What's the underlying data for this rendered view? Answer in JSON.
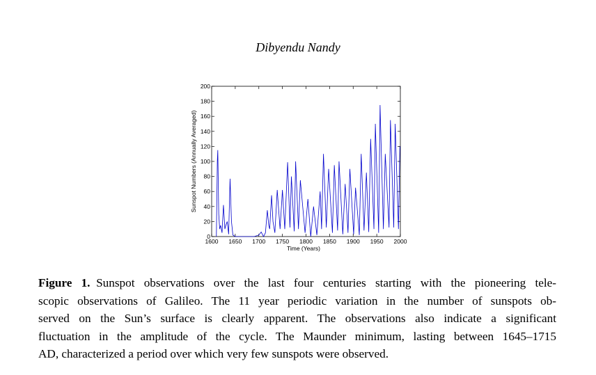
{
  "header": {
    "author": "Dibyendu Nandy"
  },
  "chart_data": {
    "type": "line",
    "xlabel": "Time (Years)",
    "ylabel": "Sunspot Numbers (Annually Averaged)",
    "xlim": [
      1600,
      2000
    ],
    "ylim": [
      0,
      200
    ],
    "xticks": [
      1600,
      1650,
      1700,
      1750,
      1800,
      1850,
      1900,
      1950,
      2000
    ],
    "yticks": [
      0,
      20,
      40,
      60,
      80,
      100,
      120,
      140,
      160,
      180,
      200
    ],
    "series": [
      {
        "color": "#0000cc",
        "x": [
          1610,
          1612,
          1613,
          1615,
          1617,
          1619,
          1622,
          1625,
          1628,
          1630,
          1633,
          1636,
          1639,
          1642,
          1645,
          1650,
          1660,
          1670,
          1680,
          1690,
          1700,
          1705,
          1710,
          1714,
          1718,
          1721,
          1723,
          1727,
          1730,
          1734,
          1739,
          1745,
          1750,
          1755,
          1761,
          1766,
          1769,
          1775,
          1778,
          1784,
          1788,
          1798,
          1804,
          1810,
          1816,
          1823,
          1830,
          1833,
          1837,
          1843,
          1848,
          1856,
          1860,
          1867,
          1870,
          1878,
          1883,
          1889,
          1893,
          1901,
          1905,
          1913,
          1917,
          1923,
          1928,
          1933,
          1937,
          1944,
          1947,
          1954,
          1957,
          1964,
          1968,
          1976,
          1979,
          1986,
          1989,
          1996,
          1999
        ],
        "values": [
          0,
          100,
          115,
          30,
          10,
          15,
          5,
          42,
          10,
          15,
          20,
          3,
          77,
          20,
          2,
          0,
          0,
          0,
          0,
          0,
          2,
          6,
          0,
          5,
          35,
          15,
          10,
          55,
          20,
          5,
          62,
          10,
          62,
          10,
          99,
          12,
          80,
          7,
          100,
          10,
          75,
          5,
          50,
          0,
          40,
          2,
          60,
          10,
          110,
          12,
          90,
          5,
          95,
          8,
          100,
          3,
          70,
          5,
          90,
          3,
          65,
          2,
          110,
          8,
          85,
          6,
          130,
          10,
          150,
          5,
          175,
          10,
          110,
          12,
          155,
          12,
          150,
          10,
          120
        ]
      }
    ]
  },
  "caption": {
    "label": "Figure 1.",
    "lines": [
      "Sunspot observations over the last four centuries starting with the pioneering tele-",
      "scopic observations of Galileo.  The 11 year periodic variation in the number of sunspots ob-",
      "served on the Sun’s surface is clearly apparent.  The observations also indicate a significant",
      "fluctuation in the amplitude of the cycle. The Maunder minimum, lasting between 1645–1715",
      "AD, characterized a period over which very few sunspots were observed."
    ]
  }
}
